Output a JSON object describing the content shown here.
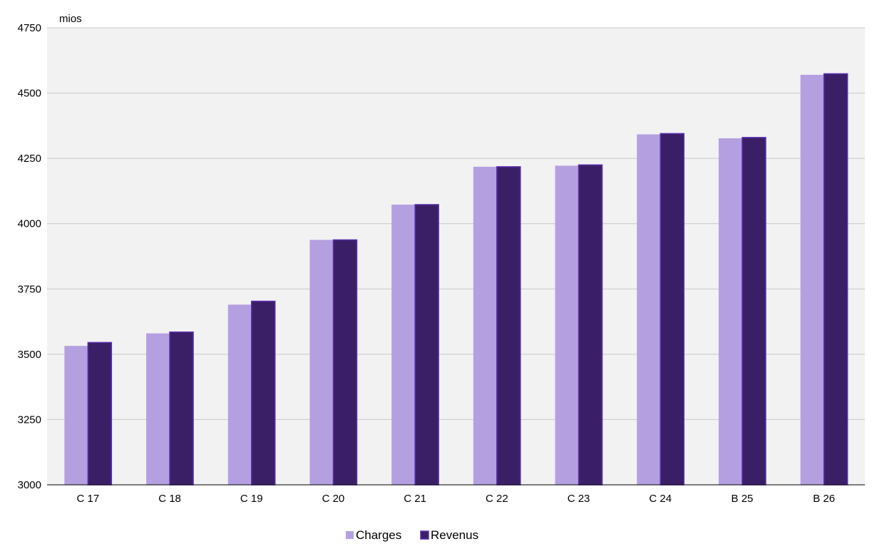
{
  "chart_data": {
    "type": "bar",
    "ylabel": "mios",
    "categories": [
      "C 17",
      "C 18",
      "C 19",
      "C 20",
      "C 21",
      "C 22",
      "C 23",
      "C 24",
      "B 25",
      "B 26"
    ],
    "series": [
      {
        "name": "Charges",
        "color": "#b4a0e0",
        "values": [
          3532,
          3580,
          3690,
          3938,
          4073,
          4218,
          4222,
          4342,
          4327,
          4570
        ]
      },
      {
        "name": "Revenus",
        "color": "#3b1f66",
        "values": [
          3545,
          3585,
          3703,
          3938,
          4073,
          4218,
          4225,
          4345,
          4330,
          4574
        ]
      }
    ],
    "ylim": [
      3000,
      4750
    ],
    "yticks": [
      3000,
      3250,
      3500,
      3750,
      4000,
      4250,
      4500,
      4750
    ],
    "grid": true,
    "plot_background": "#f2f2f2",
    "gridline_color": "#c8c8c8",
    "legend_position": "bottom-center"
  }
}
